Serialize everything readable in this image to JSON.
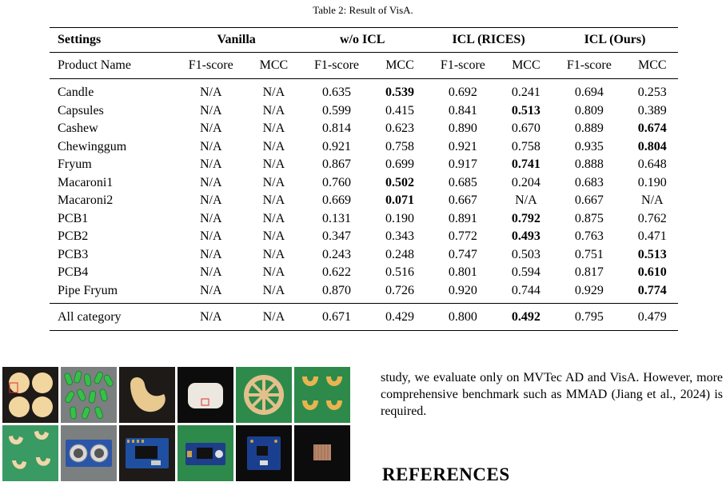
{
  "caption": "Table 2: Result of VisA.",
  "header_groups": [
    "Settings",
    "Vanilla",
    "w/o ICL",
    "ICL (RICES)",
    "ICL (Ours)"
  ],
  "metric_header": [
    "Product Name",
    "F1-score",
    "MCC",
    "F1-score",
    "MCC",
    "F1-score",
    "MCC",
    "F1-score",
    "MCC"
  ],
  "rows": [
    {
      "name": "Candle",
      "vals": [
        "N/A",
        "N/A",
        "0.635",
        "0.539",
        "0.692",
        "0.241",
        "0.694",
        "0.253"
      ]
    },
    {
      "name": "Capsules",
      "vals": [
        "N/A",
        "N/A",
        "0.599",
        "0.415",
        "0.841",
        "0.513",
        "0.809",
        "0.389"
      ]
    },
    {
      "name": "Cashew",
      "vals": [
        "N/A",
        "N/A",
        "0.814",
        "0.623",
        "0.890",
        "0.670",
        "0.889",
        "0.674"
      ]
    },
    {
      "name": "Chewinggum",
      "vals": [
        "N/A",
        "N/A",
        "0.921",
        "0.758",
        "0.921",
        "0.758",
        "0.935",
        "0.804"
      ]
    },
    {
      "name": "Fryum",
      "vals": [
        "N/A",
        "N/A",
        "0.867",
        "0.699",
        "0.917",
        "0.741",
        "0.888",
        "0.648"
      ]
    },
    {
      "name": "Macaroni1",
      "vals": [
        "N/A",
        "N/A",
        "0.760",
        "0.502",
        "0.685",
        "0.204",
        "0.683",
        "0.190"
      ]
    },
    {
      "name": "Macaroni2",
      "vals": [
        "N/A",
        "N/A",
        "0.669",
        "0.071",
        "0.667",
        "N/A",
        "0.667",
        "N/A"
      ]
    },
    {
      "name": "PCB1",
      "vals": [
        "N/A",
        "N/A",
        "0.131",
        "0.190",
        "0.891",
        "0.792",
        "0.875",
        "0.762"
      ]
    },
    {
      "name": "PCB2",
      "vals": [
        "N/A",
        "N/A",
        "0.347",
        "0.343",
        "0.772",
        "0.493",
        "0.763",
        "0.471"
      ]
    },
    {
      "name": "PCB3",
      "vals": [
        "N/A",
        "N/A",
        "0.243",
        "0.248",
        "0.747",
        "0.503",
        "0.751",
        "0.513"
      ]
    },
    {
      "name": "PCB4",
      "vals": [
        "N/A",
        "N/A",
        "0.622",
        "0.516",
        "0.801",
        "0.594",
        "0.817",
        "0.610"
      ]
    },
    {
      "name": "Pipe Fryum",
      "vals": [
        "N/A",
        "N/A",
        "0.870",
        "0.726",
        "0.920",
        "0.744",
        "0.929",
        "0.774"
      ]
    }
  ],
  "total": {
    "name": "All category",
    "vals": [
      "N/A",
      "N/A",
      "0.671",
      "0.429",
      "0.800",
      "0.492",
      "0.795",
      "0.479"
    ]
  },
  "paragraph": "study, we evaluate only on MVTec AD and VisA. However, more comprehensive benchmark such as MMAD (Jiang et al., 2024) is required.",
  "references_heading": "REFERENCES"
}
